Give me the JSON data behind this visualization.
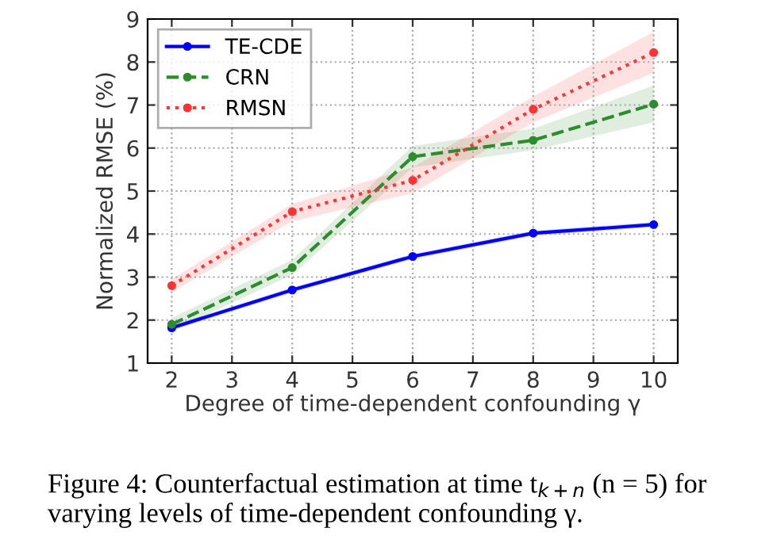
{
  "chart_data": {
    "type": "line",
    "xlabel": "Degree of time-dependent confounding γ",
    "ylabel": "Normalized RMSE (%)",
    "x": [
      2,
      4,
      6,
      8,
      10
    ],
    "series": [
      {
        "name": "TE-CDE",
        "color": "#0000ff",
        "line_style": "solid",
        "values": [
          1.82,
          2.7,
          3.48,
          4.02,
          4.22
        ],
        "lower": [
          1.76,
          2.64,
          3.42,
          3.96,
          4.16
        ],
        "upper": [
          1.88,
          2.76,
          3.54,
          4.08,
          4.28
        ]
      },
      {
        "name": "CRN",
        "color": "#2e8b2e",
        "line_style": "dashed",
        "values": [
          1.9,
          3.22,
          5.8,
          6.18,
          7.02
        ],
        "lower": [
          1.75,
          3.05,
          5.55,
          5.95,
          6.6
        ],
        "upper": [
          2.05,
          3.4,
          6.05,
          6.45,
          7.45
        ]
      },
      {
        "name": "RMSN",
        "color": "#ff3333",
        "line_style": "dotted",
        "values": [
          2.8,
          4.52,
          5.25,
          6.9,
          8.22
        ],
        "lower": [
          2.65,
          4.3,
          4.95,
          6.6,
          7.75
        ],
        "upper": [
          2.95,
          4.7,
          5.55,
          7.2,
          8.7
        ]
      }
    ],
    "xlim": [
      1.6,
      10.4
    ],
    "xticks": [
      2,
      3,
      4,
      5,
      6,
      7,
      8,
      9,
      10
    ],
    "ylim": [
      1,
      9
    ],
    "yticks": [
      1,
      2,
      3,
      4,
      5,
      6,
      7,
      8,
      9
    ],
    "grid": true,
    "legend": "top left",
    "marker": "circle",
    "annotations": [
      "Figure 4: Counterfactual estimation at time t$_{k+n}$ (n = 5) for varying levels of time-dependent confounding γ."
    ]
  }
}
